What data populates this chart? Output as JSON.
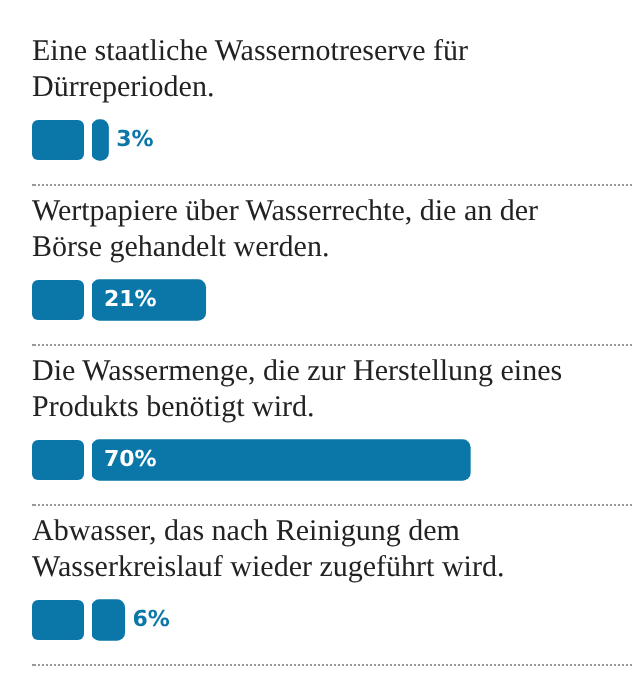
{
  "chart_data": {
    "type": "bar",
    "orientation": "horizontal",
    "categories": [
      "Eine staatliche Wassernotreserve für Dürreperioden.",
      "Wertpapiere über Wasserrechte, die an der Börse gehandelt werden.",
      "Die Wassermenge, die zur Herstellung eines Produkts benötigt wird.",
      "Abwasser, das nach Reinigung dem Wasserkreislauf wieder zugeführt wird."
    ],
    "values": [
      3,
      21,
      70,
      6
    ],
    "value_labels": [
      "3%",
      "21%",
      "70%",
      "6%"
    ],
    "color": "#0a77a8"
  }
}
